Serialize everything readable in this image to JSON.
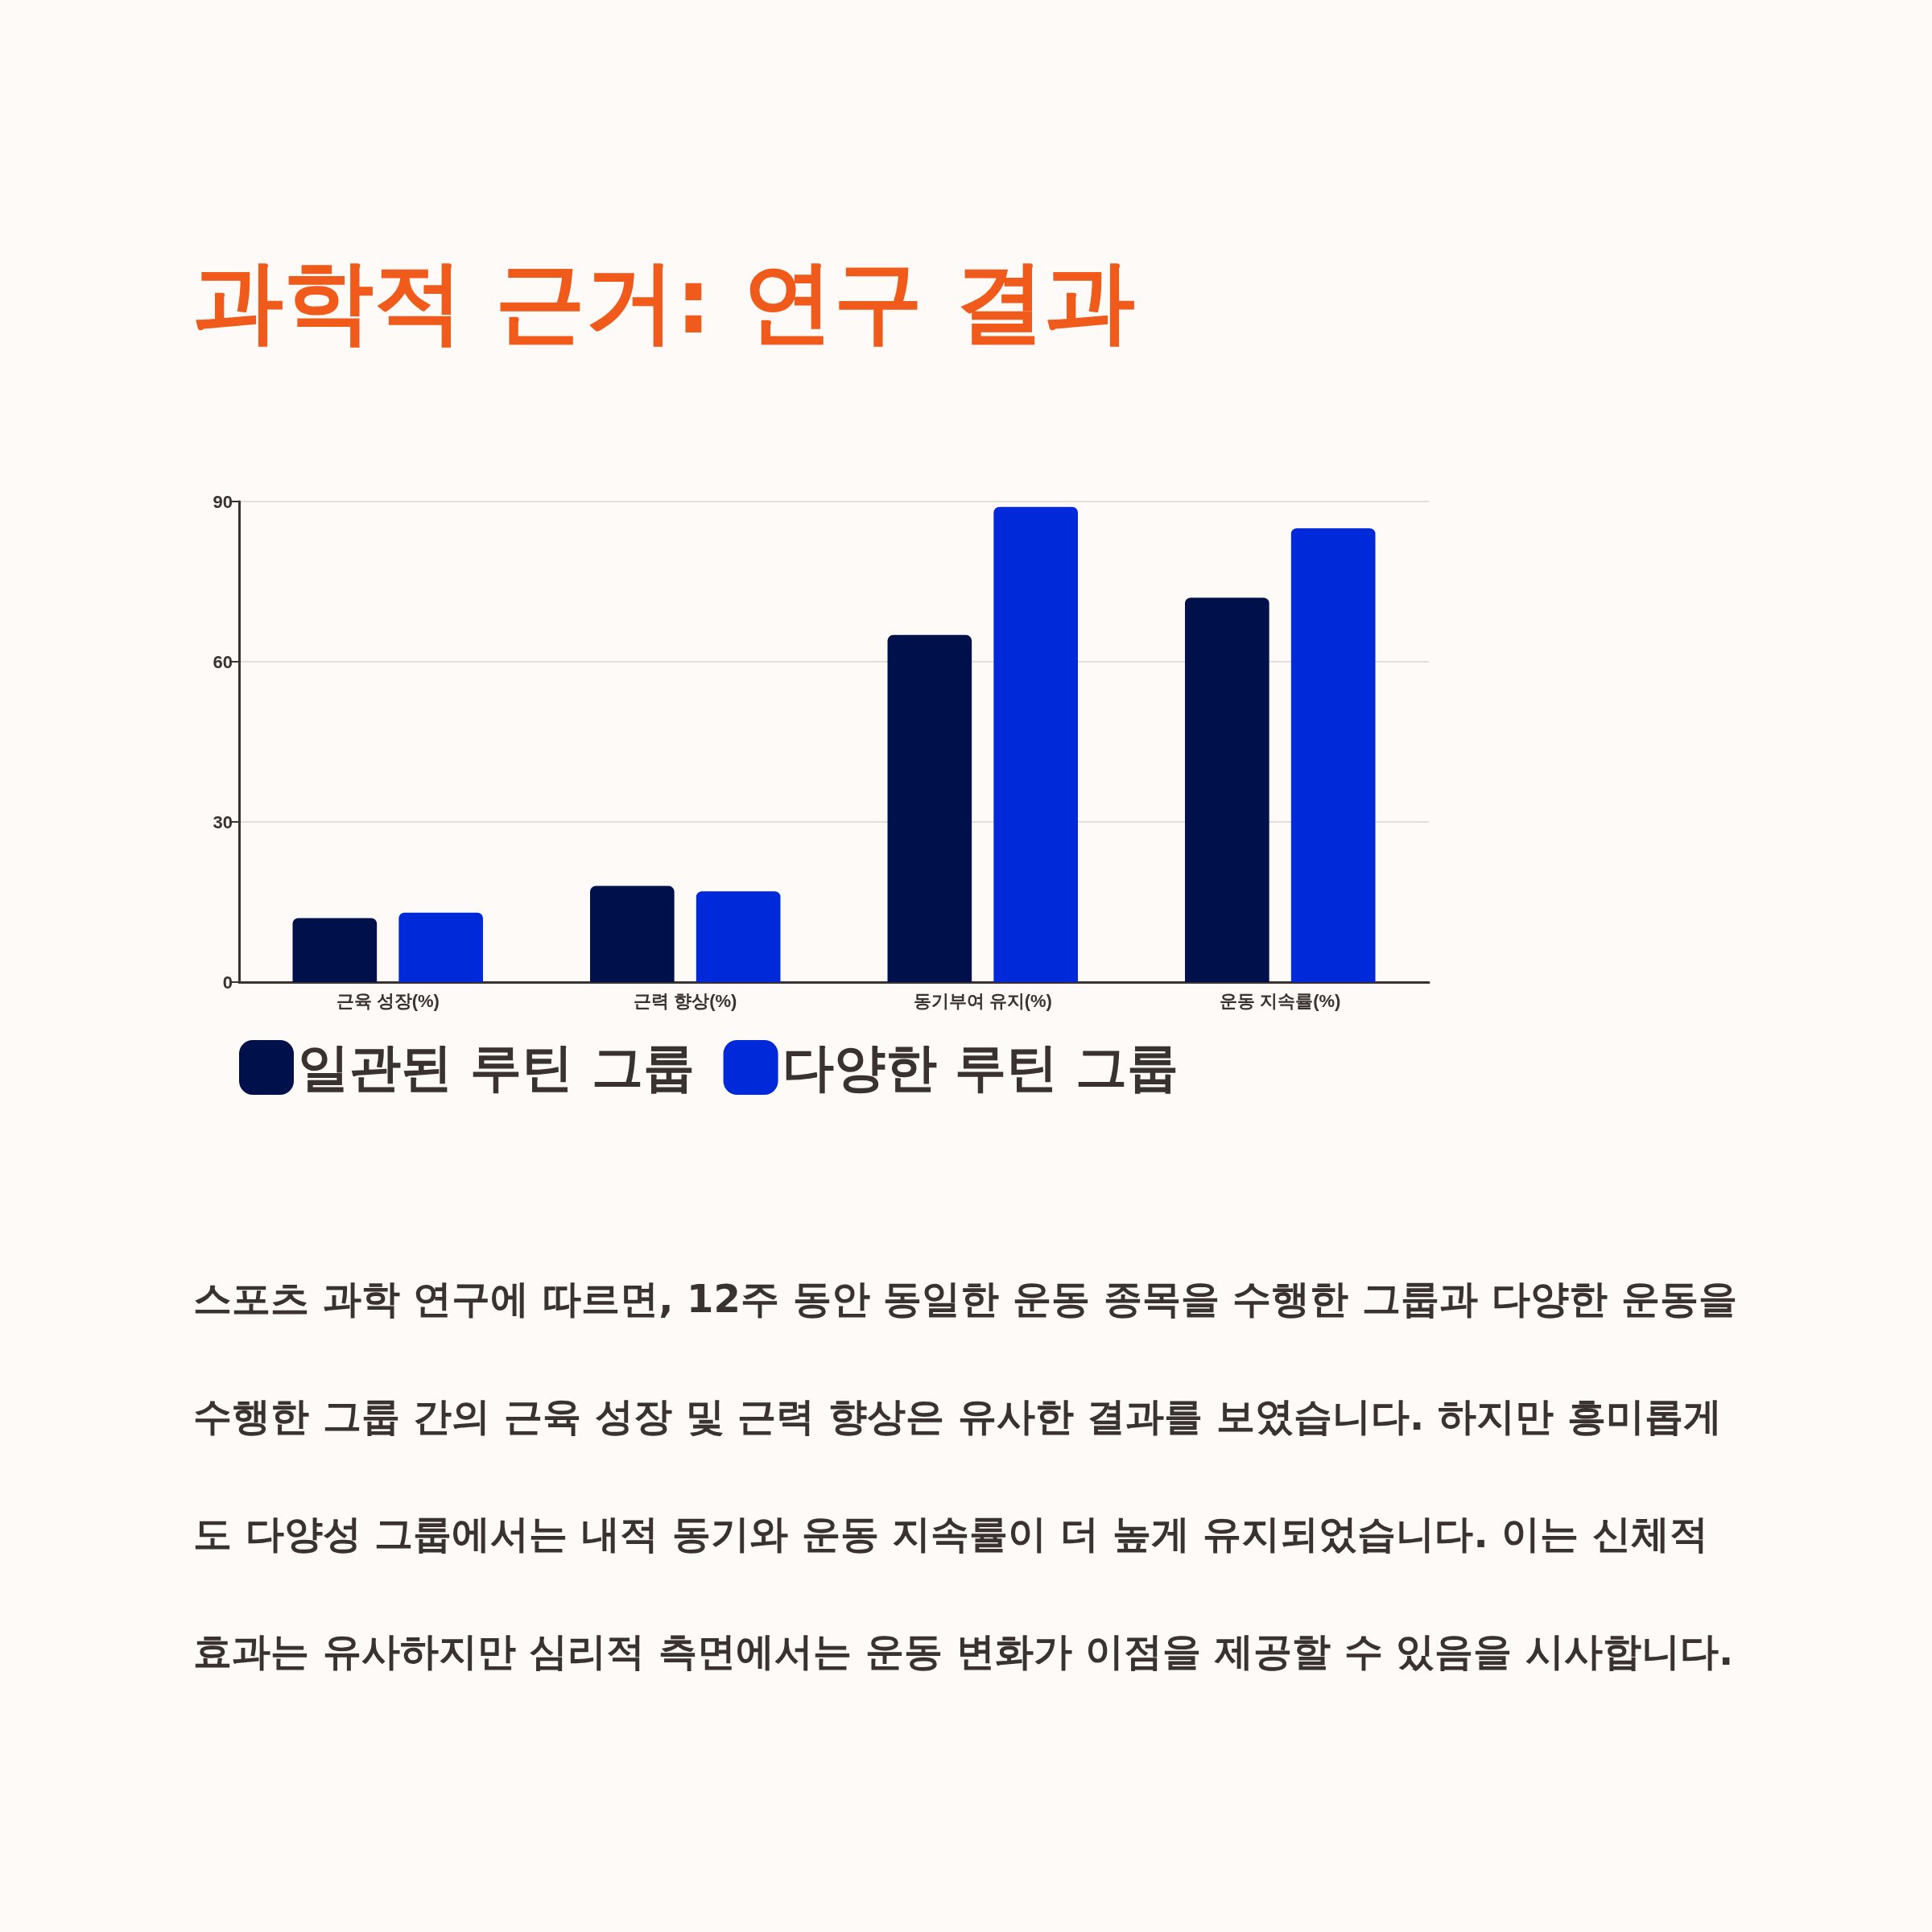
{
  "chart_data": {
    "type": "bar",
    "title": "과학적 근거: 연구 결과",
    "categories": [
      "근육 성장(%)",
      "근력 향상(%)",
      "동기부여 유지(%)",
      "운동 지속률(%)"
    ],
    "series": [
      {
        "name": "일관된 루틴 그룹",
        "color": "#00104a",
        "values": [
          12,
          18,
          65,
          72
        ]
      },
      {
        "name": "다양한 루틴 그룹",
        "color": "#0029d9",
        "values": [
          13,
          17,
          89,
          85
        ]
      }
    ],
    "ylim": [
      0,
      90
    ],
    "yticks": [
      0,
      30,
      60,
      90
    ],
    "grid": "y",
    "legend": "bottom",
    "annotations": [
      "스포츠 과학 연구에 따르면, 12주 동안 동일한 운동 종목을 수행한 그룹과 다양한 운동을 수행한 그룹 간의 근육 성장 및 근력 향상은 유사한 결과를 보였습니다. 하지만 흥미롭게도 다양성 그룹에서는 내적 동기와 운동 지속률이 더 높게 유지되었습니다. 이는 신체적 효과는 유사하지만 심리적 측면에서는 운동 변화가 이점을 제공할 수 있음을 시사합니다."
    ]
  }
}
